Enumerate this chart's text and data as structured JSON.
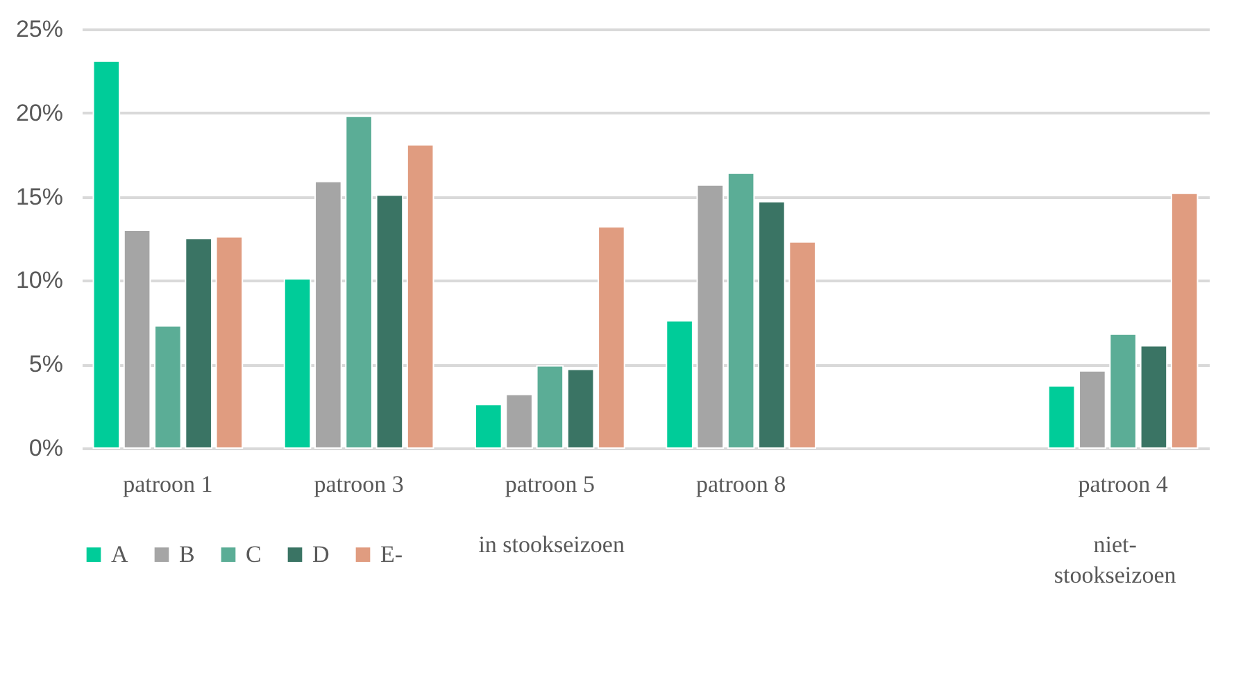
{
  "chart_data": {
    "type": "bar",
    "categories": [
      "patroon 1",
      "patroon 3",
      "patroon 5",
      "patroon 8",
      null,
      "patroon 4"
    ],
    "series": [
      {
        "name": "A",
        "color": "#00cc99",
        "values": [
          23.1,
          10.1,
          2.6,
          7.6,
          null,
          3.7
        ]
      },
      {
        "name": "B",
        "color": "#a5a5a5",
        "values": [
          13.0,
          15.9,
          3.2,
          15.7,
          null,
          4.6
        ]
      },
      {
        "name": "C",
        "color": "#5bad96",
        "values": [
          7.3,
          19.8,
          4.9,
          16.4,
          null,
          6.8
        ]
      },
      {
        "name": "D",
        "color": "#3a7464",
        "values": [
          12.5,
          15.1,
          4.7,
          14.7,
          null,
          6.1
        ]
      },
      {
        "name": "E-",
        "color": "#e09c80",
        "values": [
          12.6,
          18.1,
          13.2,
          12.3,
          null,
          15.2
        ]
      }
    ],
    "ylim": [
      0,
      25
    ],
    "yticks": [
      {
        "value": 0,
        "label": "0%"
      },
      {
        "value": 5,
        "label": "5%"
      },
      {
        "value": 10,
        "label": "10%"
      },
      {
        "value": 15,
        "label": "15%"
      },
      {
        "value": 20,
        "label": "20%"
      },
      {
        "value": 25,
        "label": "25%"
      }
    ],
    "grid": "y",
    "legend": "bottom",
    "annotations": [
      "in stookseizoen",
      "niet-stookseizoen"
    ]
  }
}
